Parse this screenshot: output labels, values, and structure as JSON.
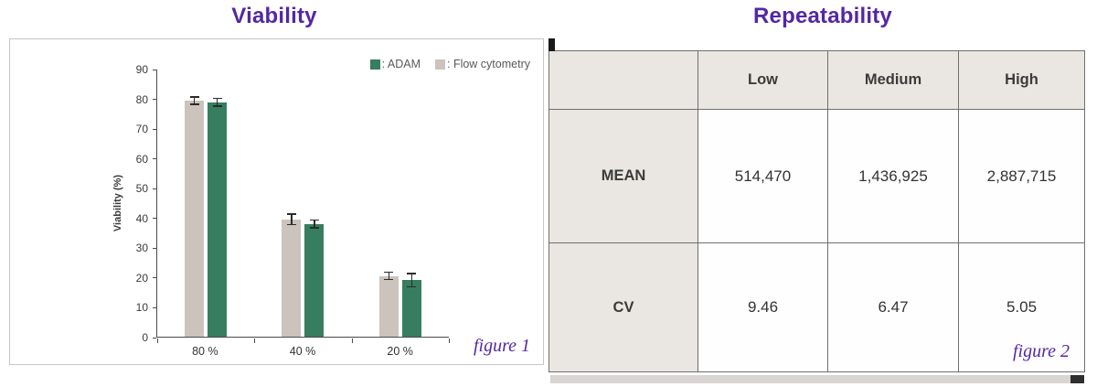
{
  "colors": {
    "accent_purple": "#5427a3",
    "adam_green": "#377d5f",
    "flow_gray": "#cbc3bc",
    "table_header_bg": "#eae6e1",
    "axis": "#4a4a4a"
  },
  "left_panel": {
    "title": "Viability",
    "figure_label": "figure 1",
    "y_axis_title": "Viability (%)",
    "legend": [
      {
        "label": ": ADAM",
        "color": "#377d5f"
      },
      {
        "label": ": Flow cytometry",
        "color": "#cbc3bc"
      }
    ]
  },
  "right_panel": {
    "title": "Repeatability",
    "figure_label": "figure 2",
    "table": {
      "columns": [
        "",
        "Low",
        "Medium",
        "High"
      ],
      "rows": [
        {
          "label": "MEAN",
          "values": [
            "514,470",
            "1,436,925",
            "2,887,715"
          ]
        },
        {
          "label": "CV",
          "values": [
            "9.46",
            "6.47",
            "5.05"
          ]
        }
      ]
    }
  },
  "chart_data": [
    {
      "type": "bar",
      "title": "Viability",
      "categories": [
        "80 %",
        "40 %",
        "20 %"
      ],
      "series": [
        {
          "name": "Flow cytometry",
          "color": "#cbc3bc",
          "values": [
            79.5,
            39.5,
            20.5
          ],
          "errors": [
            1.5,
            2,
            1.5
          ]
        },
        {
          "name": "ADAM",
          "color": "#377d5f",
          "values": [
            79,
            38,
            19
          ],
          "errors": [
            1.5,
            1.5,
            2.5
          ]
        }
      ],
      "xlabel": "",
      "ylabel": "Viability (%)",
      "ylim": [
        0,
        90
      ],
      "ytick_step": 10,
      "grid": false,
      "legend_position": "top-right"
    },
    {
      "type": "table",
      "title": "Repeatability",
      "columns": [
        "",
        "Low",
        "Medium",
        "High"
      ],
      "rows": [
        [
          "MEAN",
          "514,470",
          "1,436,925",
          "2,887,715"
        ],
        [
          "CV",
          "9.46",
          "6.47",
          "5.05"
        ]
      ]
    }
  ]
}
